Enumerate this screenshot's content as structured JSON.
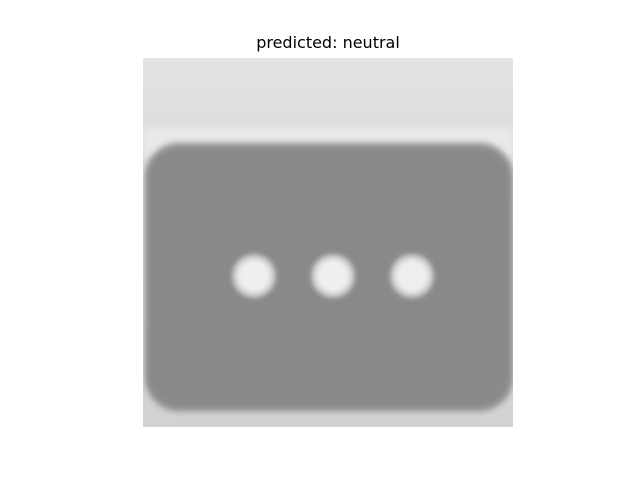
{
  "title": "predicted: neutral",
  "image": {
    "subject": "grayscale-emoji-speech-bubble-with-three-dots",
    "colors": {
      "background_top": "#e2e2e2",
      "background_bottom": "#d4d4d4",
      "bubble": "#8a8a8a",
      "dots": "#eeeeee"
    }
  }
}
